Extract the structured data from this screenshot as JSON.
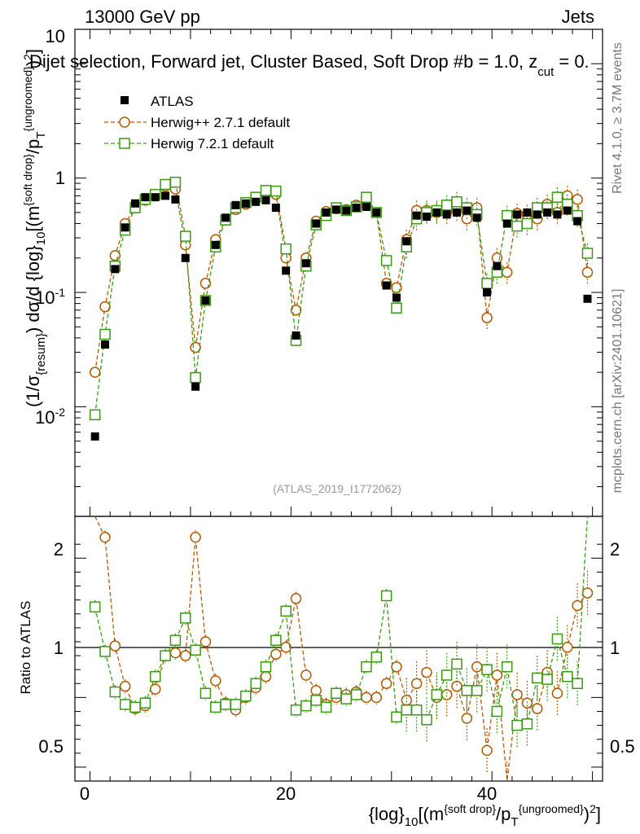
{
  "header": {
    "energy": "13000 GeV pp",
    "process": "Jets",
    "selection": "Dijet selection, Forward jet, Cluster Based, Soft Drop #b = 1.0, z",
    "selection_sub": "cut",
    "selection_tail": " = 0.",
    "watermark": "(ATLAS_2019_I1772062)"
  },
  "side_labels": {
    "rivet": "Rivet 4.1.0, ≥ 3.7M events",
    "mcplots": "mcplots.cern.ch [arXiv:2401.10621]"
  },
  "axis_labels": {
    "x_a": "{log}",
    "x_b": "10",
    "x_c": "[(m",
    "x_d": "{soft drop}",
    "x_e": "/p",
    "x_f": "T",
    "x_g": "{ungroomed}",
    "x_h": ")",
    "x_i": "2",
    "x_j": "]",
    "y_a": "(1/σ",
    "y_b": "{resum}",
    "y_c": ") dσ/d {log}",
    "y_d": "10",
    "y_e": "[(m",
    "y_f": "{soft drop}",
    "y_g": "/p",
    "y_h": "T",
    "y_i": "{ungroomed}",
    "y_j": ")",
    "y_k": "2",
    "y_l": "]",
    "ratio_y": "Ratio to ATLAS"
  },
  "tick_labels": {
    "main_y": [
      {
        "base": "10",
        "exp": "-2"
      },
      {
        "base": "10",
        "exp": "-1"
      },
      {
        "base": "1",
        "exp": ""
      },
      {
        "base": "10",
        "exp": ""
      }
    ],
    "ratio_y": [
      "0.5",
      "1",
      "2"
    ],
    "x": [
      "0",
      "20",
      "40"
    ]
  },
  "legend": [
    {
      "label": "ATLAS",
      "color": "#000000",
      "marker": "square-filled"
    },
    {
      "label": "Herwig++ 2.7.1 default",
      "color": "#b35900",
      "marker": "circle-open"
    },
    {
      "label": "Herwig 7.2.1 default",
      "color": "#3a9a12",
      "marker": "square-open"
    }
  ],
  "chart_data": {
    "type": "scatter",
    "x_range": [
      -1.5,
      51
    ],
    "main_y_range_log": [
      0.0011,
      20
    ],
    "ratio_y_range": [
      0.4,
      2.3
    ],
    "x": [
      0.5,
      1.5,
      2.5,
      3.5,
      4.5,
      5.5,
      6.5,
      7.5,
      8.5,
      9.5,
      10.5,
      11.5,
      12.5,
      13.5,
      14.5,
      15.5,
      16.5,
      17.5,
      18.5,
      19.5,
      20.5,
      21.5,
      22.5,
      23.5,
      24.5,
      25.5,
      26.5,
      27.5,
      28.5,
      29.5,
      30.5,
      31.5,
      32.5,
      33.5,
      34.5,
      35.5,
      36.5,
      37.5,
      38.5,
      39.5,
      40.5,
      41.5,
      42.5,
      43.5,
      44.5,
      45.5,
      46.5,
      47.5,
      48.5,
      49.5
    ],
    "series": [
      {
        "name": "ATLAS",
        "values": [
          0.0055,
          0.035,
          0.16,
          0.37,
          0.6,
          0.68,
          0.68,
          0.7,
          0.65,
          0.2,
          0.015,
          0.085,
          0.26,
          0.45,
          0.58,
          0.6,
          0.62,
          0.64,
          0.55,
          0.155,
          0.042,
          0.18,
          0.4,
          0.5,
          0.53,
          0.52,
          0.55,
          0.56,
          0.5,
          0.115,
          0.09,
          0.28,
          0.47,
          0.46,
          0.5,
          0.48,
          0.5,
          0.52,
          0.45,
          0.1,
          0.17,
          0.4,
          0.48,
          0.5,
          0.48,
          0.5,
          0.48,
          0.52,
          0.42,
          0.088
        ]
      },
      {
        "name": "Herwig++ 2.7.1 default",
        "values": [
          0.02,
          0.075,
          0.21,
          0.4,
          0.55,
          0.64,
          0.7,
          0.85,
          0.8,
          0.26,
          0.033,
          0.12,
          0.29,
          0.43,
          0.53,
          0.59,
          0.66,
          0.74,
          0.72,
          0.2,
          0.07,
          0.2,
          0.42,
          0.51,
          0.54,
          0.53,
          0.58,
          0.58,
          0.5,
          0.12,
          0.11,
          0.29,
          0.52,
          0.52,
          0.5,
          0.5,
          0.53,
          0.44,
          0.55,
          0.06,
          0.2,
          0.15,
          0.49,
          0.48,
          0.44,
          0.59,
          0.5,
          0.7,
          0.65,
          0.15
        ]
      },
      {
        "name": "Herwig 7.2.1 default",
        "values": [
          0.0085,
          0.043,
          0.17,
          0.35,
          0.55,
          0.65,
          0.72,
          0.88,
          0.92,
          0.31,
          0.018,
          0.085,
          0.25,
          0.43,
          0.55,
          0.61,
          0.68,
          0.78,
          0.77,
          0.24,
          0.038,
          0.17,
          0.39,
          0.47,
          0.55,
          0.52,
          0.56,
          0.68,
          0.5,
          0.19,
          0.073,
          0.25,
          0.44,
          0.5,
          0.52,
          0.58,
          0.62,
          0.55,
          0.48,
          0.12,
          0.15,
          0.47,
          0.38,
          0.4,
          0.55,
          0.55,
          0.68,
          0.59,
          0.47,
          0.22
        ]
      }
    ],
    "ratios": [
      {
        "name": "Herwig++ 2.7.1 default",
        "values": [
          3.5,
          2.15,
          1.37,
          1.08,
          0.92,
          0.94,
          1.06,
          1.3,
          1.32,
          1.3,
          2.15,
          1.4,
          1.12,
          0.96,
          0.91,
          1.0,
          1.07,
          1.15,
          1.31,
          1.36,
          1.71,
          1.16,
          1.05,
          0.95,
          1.0,
          1.02,
          1.04,
          1.0,
          1.0,
          1.1,
          1.22,
          0.98,
          1.1,
          1.18,
          1.0,
          1.02,
          1.08,
          0.85,
          1.22,
          0.62,
          1.16,
          0.38,
          1.02,
          0.96,
          0.92,
          1.18,
          1.03,
          1.36,
          1.66,
          1.75
        ]
      },
      {
        "name": "Herwig 7.2.1 default",
        "values": [
          1.65,
          1.33,
          1.04,
          0.95,
          0.93,
          0.96,
          1.15,
          1.3,
          1.41,
          1.57,
          1.34,
          1.03,
          0.93,
          0.95,
          0.95,
          1.01,
          1.1,
          1.22,
          1.41,
          1.62,
          0.91,
          0.94,
          0.98,
          0.93,
          1.03,
          0.99,
          1.02,
          1.22,
          1.29,
          1.73,
          0.86,
          0.91,
          0.91,
          0.84,
          1.02,
          1.16,
          1.24,
          1.05,
          1.05,
          1.2,
          0.9,
          1.22,
          0.8,
          0.81,
          1.14,
          1.13,
          1.42,
          1.15,
          1.1,
          2.5
        ]
      }
    ],
    "xlabel": "{log}10[(m{soft drop}/pT{ungroomed})2]",
    "ylabel": "(1/σ{resum}) dσ/d {log}10[(m{soft drop}/pT{ungroomed})2]",
    "ratio_ylabel": "Ratio to ATLAS"
  }
}
